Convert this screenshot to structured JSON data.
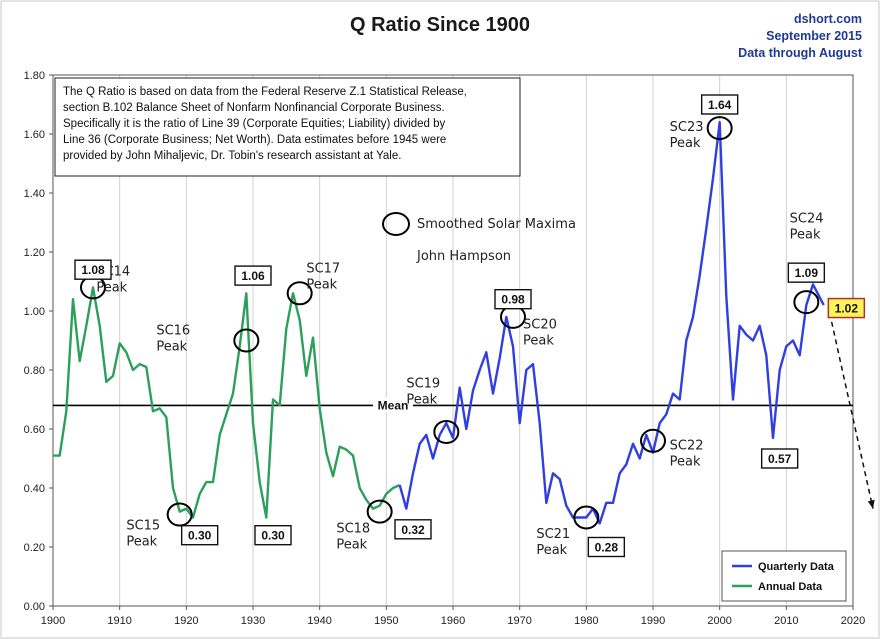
{
  "header": {
    "title": "Q Ratio Since 1900",
    "source_lines": [
      "dshort.com",
      "September 2015",
      "Data through August"
    ]
  },
  "note_lines": [
    "The Q Ratio is based on data from the Federal Reserve Z.1 Statistical Release,",
    "section B.102 Balance Sheet of Nonfarm Nonfinancial Corporate Business.",
    "Specifically it is the ratio of Line 39 (Corporate Equities; Liability) divided by",
    "Line 36 (Corporate Business; Net Worth).  Data estimates before 1945 were",
    "provided by John Mihaljevic, Dr. Tobin's research assistant at Yale."
  ],
  "solar_legend": {
    "label": "Smoothed Solar Maxima",
    "credit": "John Hampson"
  },
  "mean_label": "Mean",
  "colors": {
    "annual": "#2ca05a",
    "quarterly": "#2f3fe0",
    "mean": "#000000",
    "highlight": "#fff35a"
  },
  "chart_data": {
    "type": "line",
    "title": "Q Ratio Since 1900",
    "xlim": [
      1900,
      2020
    ],
    "ylim": [
      0,
      1.8
    ],
    "x_ticks": [
      "1900",
      "1910",
      "1920",
      "1930",
      "1940",
      "1950",
      "1960",
      "1970",
      "1980",
      "1990",
      "2000",
      "2010",
      "2020"
    ],
    "y_ticks": [
      "0.00",
      "0.20",
      "0.40",
      "0.60",
      "0.80",
      "1.00",
      "1.20",
      "1.40",
      "1.60",
      "1.80"
    ],
    "mean": 0.68,
    "series": [
      {
        "name": "Annual Data",
        "x": [
          1900,
          1901,
          1902,
          1903,
          1904,
          1905,
          1906,
          1907,
          1908,
          1909,
          1910,
          1911,
          1912,
          1913,
          1914,
          1915,
          1916,
          1917,
          1918,
          1919,
          1920,
          1921,
          1922,
          1923,
          1924,
          1925,
          1926,
          1927,
          1928,
          1929,
          1930,
          1931,
          1932,
          1933,
          1934,
          1935,
          1936,
          1937,
          1938,
          1939,
          1940,
          1941,
          1942,
          1943,
          1944,
          1945,
          1946,
          1947,
          1948,
          1949,
          1950,
          1951,
          1952
        ],
        "values": [
          0.51,
          0.51,
          0.66,
          1.04,
          0.83,
          0.95,
          1.08,
          0.95,
          0.76,
          0.78,
          0.89,
          0.86,
          0.8,
          0.82,
          0.81,
          0.66,
          0.67,
          0.64,
          0.4,
          0.32,
          0.33,
          0.3,
          0.38,
          0.42,
          0.42,
          0.58,
          0.65,
          0.72,
          0.88,
          1.06,
          0.62,
          0.42,
          0.3,
          0.7,
          0.68,
          0.94,
          1.06,
          0.97,
          0.78,
          0.91,
          0.67,
          0.52,
          0.44,
          0.54,
          0.53,
          0.51,
          0.4,
          0.36,
          0.33,
          0.34,
          0.38,
          0.4,
          0.41
        ]
      },
      {
        "name": "Quarterly Data",
        "x": [
          1952,
          1953,
          1954,
          1955,
          1956,
          1957,
          1958,
          1959,
          1960,
          1961,
          1962,
          1963,
          1964,
          1965,
          1966,
          1967,
          1968,
          1969,
          1970,
          1971,
          1972,
          1973,
          1974,
          1975,
          1976,
          1977,
          1978,
          1979,
          1980,
          1981,
          1982,
          1983,
          1984,
          1985,
          1986,
          1987,
          1988,
          1989,
          1990,
          1991,
          1992,
          1993,
          1994,
          1995,
          1996,
          1997,
          1998,
          1999,
          2000,
          2001,
          2002,
          2003,
          2004,
          2005,
          2006,
          2007,
          2008,
          2009,
          2010,
          2011,
          2012,
          2013,
          2014,
          2015.6
        ],
        "values": [
          0.41,
          0.33,
          0.45,
          0.55,
          0.58,
          0.5,
          0.58,
          0.62,
          0.57,
          0.74,
          0.6,
          0.73,
          0.8,
          0.86,
          0.72,
          0.84,
          0.98,
          0.88,
          0.62,
          0.8,
          0.82,
          0.62,
          0.35,
          0.45,
          0.43,
          0.34,
          0.3,
          0.3,
          0.3,
          0.33,
          0.28,
          0.35,
          0.35,
          0.45,
          0.48,
          0.55,
          0.5,
          0.58,
          0.52,
          0.62,
          0.65,
          0.72,
          0.7,
          0.9,
          0.98,
          1.12,
          1.28,
          1.45,
          1.64,
          1.05,
          0.7,
          0.95,
          0.92,
          0.9,
          0.95,
          0.85,
          0.57,
          0.8,
          0.88,
          0.9,
          0.85,
          1.02,
          1.09,
          1.02
        ]
      }
    ],
    "annotations": [
      {
        "label": [
          "SC14",
          "Peak"
        ],
        "x": 1906,
        "y": 1.08,
        "value": "1.08",
        "value_x": 1906,
        "value_y": 1.14
      },
      {
        "label": [
          "SC15",
          "Peak"
        ],
        "x": 1919,
        "y": 0.31,
        "value": "0.30",
        "value_x": 1922,
        "value_y": 0.24
      },
      {
        "label": [
          "SC16",
          "Peak"
        ],
        "x": 1929,
        "y": 0.9
      },
      {
        "label": [
          "SC17",
          "Peak"
        ],
        "x": 1937,
        "y": 1.06,
        "value": "1.06",
        "value_x": 1930,
        "value_y": 1.12
      },
      {
        "value": "0.30",
        "value_x": 1933,
        "value_y": 0.24
      },
      {
        "label": [
          "SC18",
          "Peak"
        ],
        "x": 1949,
        "y": 0.32,
        "value": "0.32",
        "value_x": 1954,
        "value_y": 0.26
      },
      {
        "label": [
          "SC19",
          "Peak"
        ],
        "x": 1959,
        "y": 0.59
      },
      {
        "label": [
          "SC20",
          "Peak"
        ],
        "x": 1969,
        "y": 0.98,
        "value": "0.98",
        "value_x": 1969,
        "value_y": 1.04
      },
      {
        "label": [
          "SC21",
          "Peak"
        ],
        "x": 1980,
        "y": 0.3,
        "value": "0.28",
        "value_x": 1983,
        "value_y": 0.2
      },
      {
        "label": [
          "SC22",
          "Peak"
        ],
        "x": 1990,
        "y": 0.56
      },
      {
        "label": [
          "SC23",
          "Peak"
        ],
        "x": 2000,
        "y": 1.62,
        "value": "1.64",
        "value_x": 2000,
        "value_y": 1.7
      },
      {
        "value": "0.57",
        "value_x": 2009,
        "value_y": 0.5
      },
      {
        "label": [
          "SC24",
          "Peak"
        ],
        "x": 2013,
        "y": 1.03,
        "value": "1.09",
        "value_x": 2013,
        "value_y": 1.13
      },
      {
        "value": "1.02",
        "value_x": 2019,
        "value_y": 1.01,
        "highlight": true
      }
    ],
    "trend_arrow": {
      "from": [
        2015.6,
        1.02
      ],
      "to": [
        2023,
        0.33
      ]
    },
    "legend": {
      "position": "bottom-right",
      "entries": [
        "Quarterly Data",
        "Annual Data"
      ]
    }
  }
}
